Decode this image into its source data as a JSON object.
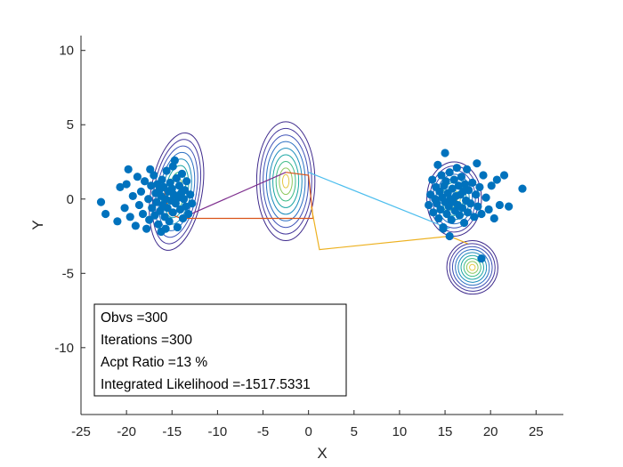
{
  "chart_data": {
    "type": "scatter",
    "title": "",
    "xlabel": "X",
    "ylabel": "Y",
    "xlim": [
      -25,
      28
    ],
    "ylim": [
      -14.5,
      11
    ],
    "xticks": [
      "-25",
      "-20",
      "-15",
      "-10",
      "-5",
      "0",
      "5",
      "10",
      "15",
      "20",
      "25"
    ],
    "yticks": [
      "10",
      "5",
      "0",
      "-5",
      "-10"
    ],
    "grid": false,
    "legend": "none",
    "colors": {
      "points": "#0072bd",
      "axes": "#262626",
      "path_segments": [
        "#d95319",
        "#7e2f8e",
        "#4dbeee",
        "#edb120",
        "#d95319"
      ]
    },
    "annotation": {
      "lines": [
        "Obvs =300",
        "Iterations =300",
        "Acpt Ratio =13 %",
        "Integrated Likelihood =-1517.5331"
      ]
    },
    "clusters": [
      {
        "center_x": -15.5,
        "center_y": 0.3,
        "points": [
          [
            -22.8,
            -0.2
          ],
          [
            -22.3,
            -1.0
          ],
          [
            -21.0,
            -1.5
          ],
          [
            -20.7,
            0.8
          ],
          [
            -20.2,
            -0.6
          ],
          [
            -20.0,
            1.0
          ],
          [
            -19.8,
            2.0
          ],
          [
            -19.6,
            -1.2
          ],
          [
            -19.3,
            0.2
          ],
          [
            -19.0,
            -1.8
          ],
          [
            -18.8,
            1.5
          ],
          [
            -18.6,
            -0.4
          ],
          [
            -18.4,
            0.5
          ],
          [
            -18.2,
            -1.0
          ],
          [
            -18.0,
            1.2
          ],
          [
            -17.8,
            -2.0
          ],
          [
            -17.6,
            0.0
          ],
          [
            -17.5,
            -1.4
          ],
          [
            -17.3,
            0.9
          ],
          [
            -17.2,
            -0.6
          ],
          [
            -17.0,
            1.6
          ],
          [
            -16.9,
            -1.1
          ],
          [
            -16.8,
            0.4
          ],
          [
            -16.7,
            -0.2
          ],
          [
            -16.6,
            1.0
          ],
          [
            -16.5,
            -1.7
          ],
          [
            -16.4,
            0.6
          ],
          [
            -16.3,
            -0.8
          ],
          [
            -16.2,
            0.2
          ],
          [
            -16.1,
            1.3
          ],
          [
            -16.0,
            -0.4
          ],
          [
            -15.9,
            0.8
          ],
          [
            -15.8,
            -1.2
          ],
          [
            -15.7,
            0.0
          ],
          [
            -15.6,
            1.9
          ],
          [
            -15.5,
            -0.6
          ],
          [
            -15.4,
            0.5
          ],
          [
            -15.3,
            -1.5
          ],
          [
            -15.2,
            1.1
          ],
          [
            -15.1,
            -0.1
          ],
          [
            -15.0,
            0.7
          ],
          [
            -14.9,
            -0.9
          ],
          [
            -14.8,
            0.3
          ],
          [
            -14.7,
            2.6
          ],
          [
            -14.6,
            -0.3
          ],
          [
            -14.5,
            1.4
          ],
          [
            -14.4,
            -1.9
          ],
          [
            -14.3,
            0.1
          ],
          [
            -14.2,
            0.9
          ],
          [
            -14.1,
            -0.7
          ],
          [
            -14.0,
            0.4
          ],
          [
            -13.9,
            1.7
          ],
          [
            -13.8,
            -1.3
          ],
          [
            -13.7,
            0.0
          ],
          [
            -13.6,
            0.6
          ],
          [
            -13.5,
            -0.5
          ],
          [
            -13.4,
            1.2
          ],
          [
            -13.2,
            -1.0
          ],
          [
            -13.0,
            0.3
          ],
          [
            -12.8,
            -0.3
          ],
          [
            -16.2,
            -2.2
          ],
          [
            -17.4,
            2.0
          ],
          [
            -14.9,
            2.2
          ],
          [
            -15.7,
            -2.0
          ]
        ]
      },
      {
        "center_x": 15.5,
        "center_y": 0.0,
        "points": [
          [
            13.2,
            -0.4
          ],
          [
            13.4,
            0.3
          ],
          [
            13.6,
            1.3
          ],
          [
            13.7,
            -0.9
          ],
          [
            13.9,
            0.0
          ],
          [
            14.0,
            0.8
          ],
          [
            14.1,
            -0.3
          ],
          [
            14.2,
            2.3
          ],
          [
            14.3,
            -1.3
          ],
          [
            14.4,
            0.5
          ],
          [
            14.5,
            -0.7
          ],
          [
            14.6,
            1.6
          ],
          [
            14.7,
            0.1
          ],
          [
            14.8,
            -1.9
          ],
          [
            14.9,
            0.9
          ],
          [
            15.0,
            -0.2
          ],
          [
            15.0,
            3.1
          ],
          [
            15.1,
            1.2
          ],
          [
            15.2,
            -1.0
          ],
          [
            15.3,
            0.4
          ],
          [
            15.4,
            -0.5
          ],
          [
            15.5,
            1.8
          ],
          [
            15.6,
            0.0
          ],
          [
            15.7,
            -1.4
          ],
          [
            15.8,
            0.7
          ],
          [
            15.9,
            -0.2
          ],
          [
            16.0,
            1.3
          ],
          [
            16.1,
            -0.8
          ],
          [
            16.2,
            0.2
          ],
          [
            16.3,
            2.1
          ],
          [
            16.4,
            -0.4
          ],
          [
            16.5,
            0.9
          ],
          [
            16.6,
            -1.1
          ],
          [
            16.7,
            0.3
          ],
          [
            16.8,
            1.5
          ],
          [
            16.9,
            -0.6
          ],
          [
            17.0,
            0.5
          ],
          [
            17.1,
            -1.6
          ],
          [
            17.2,
            1.0
          ],
          [
            17.3,
            -0.1
          ],
          [
            17.4,
            2.0
          ],
          [
            17.5,
            -0.9
          ],
          [
            17.6,
            0.6
          ],
          [
            17.8,
            -0.3
          ],
          [
            18.0,
            1.1
          ],
          [
            18.2,
            -1.2
          ],
          [
            18.4,
            0.3
          ],
          [
            18.5,
            2.4
          ],
          [
            18.6,
            -0.5
          ],
          [
            18.8,
            0.8
          ],
          [
            19.0,
            -1.0
          ],
          [
            19.2,
            1.6
          ],
          [
            19.5,
            0.1
          ],
          [
            19.8,
            -0.7
          ],
          [
            20.1,
            0.9
          ],
          [
            20.4,
            -1.3
          ],
          [
            20.7,
            1.3
          ],
          [
            21.0,
            -0.4
          ],
          [
            21.5,
            1.6
          ],
          [
            22.0,
            -0.5
          ],
          [
            23.5,
            0.7
          ],
          [
            19.0,
            -4.0
          ],
          [
            15.5,
            -2.5
          ],
          [
            14.8,
            -2.0
          ]
        ]
      }
    ],
    "contours": [
      {
        "cx": -14.5,
        "cy": 0.5,
        "rx_max": 2.8,
        "ry_max": 4.0,
        "tilt": 0.25,
        "levels": 9
      },
      {
        "cx": -2.5,
        "cy": 1.2,
        "rx_max": 3.2,
        "ry_max": 4.0,
        "tilt": 0.0,
        "levels": 9
      },
      {
        "cx": 16.0,
        "cy": 0.0,
        "rx_max": 3.0,
        "ry_max": 2.5,
        "tilt": 0.0,
        "levels": 9
      },
      {
        "cx": 18.0,
        "cy": -4.6,
        "rx_max": 2.8,
        "ry_max": 1.8,
        "tilt": -0.15,
        "levels": 9
      }
    ],
    "path": [
      [
        [
          -16.0,
          1.0
        ],
        [
          -15.3,
          -1.0
        ],
        [
          -14.0,
          -1.3
        ],
        [
          0.5,
          -1.3
        ],
        [
          0.0,
          1.6
        ],
        [
          -2.5,
          1.8
        ]
      ],
      [
        [
          -2.5,
          1.8
        ],
        [
          -14.0,
          -1.3
        ]
      ],
      [
        [
          0.0,
          1.8
        ],
        [
          15.5,
          -2.0
        ]
      ],
      [
        [
          0.3,
          -0.5
        ],
        [
          1.2,
          -3.4
        ],
        [
          15.5,
          -2.5
        ],
        [
          17.5,
          -3.0
        ]
      ]
    ]
  }
}
